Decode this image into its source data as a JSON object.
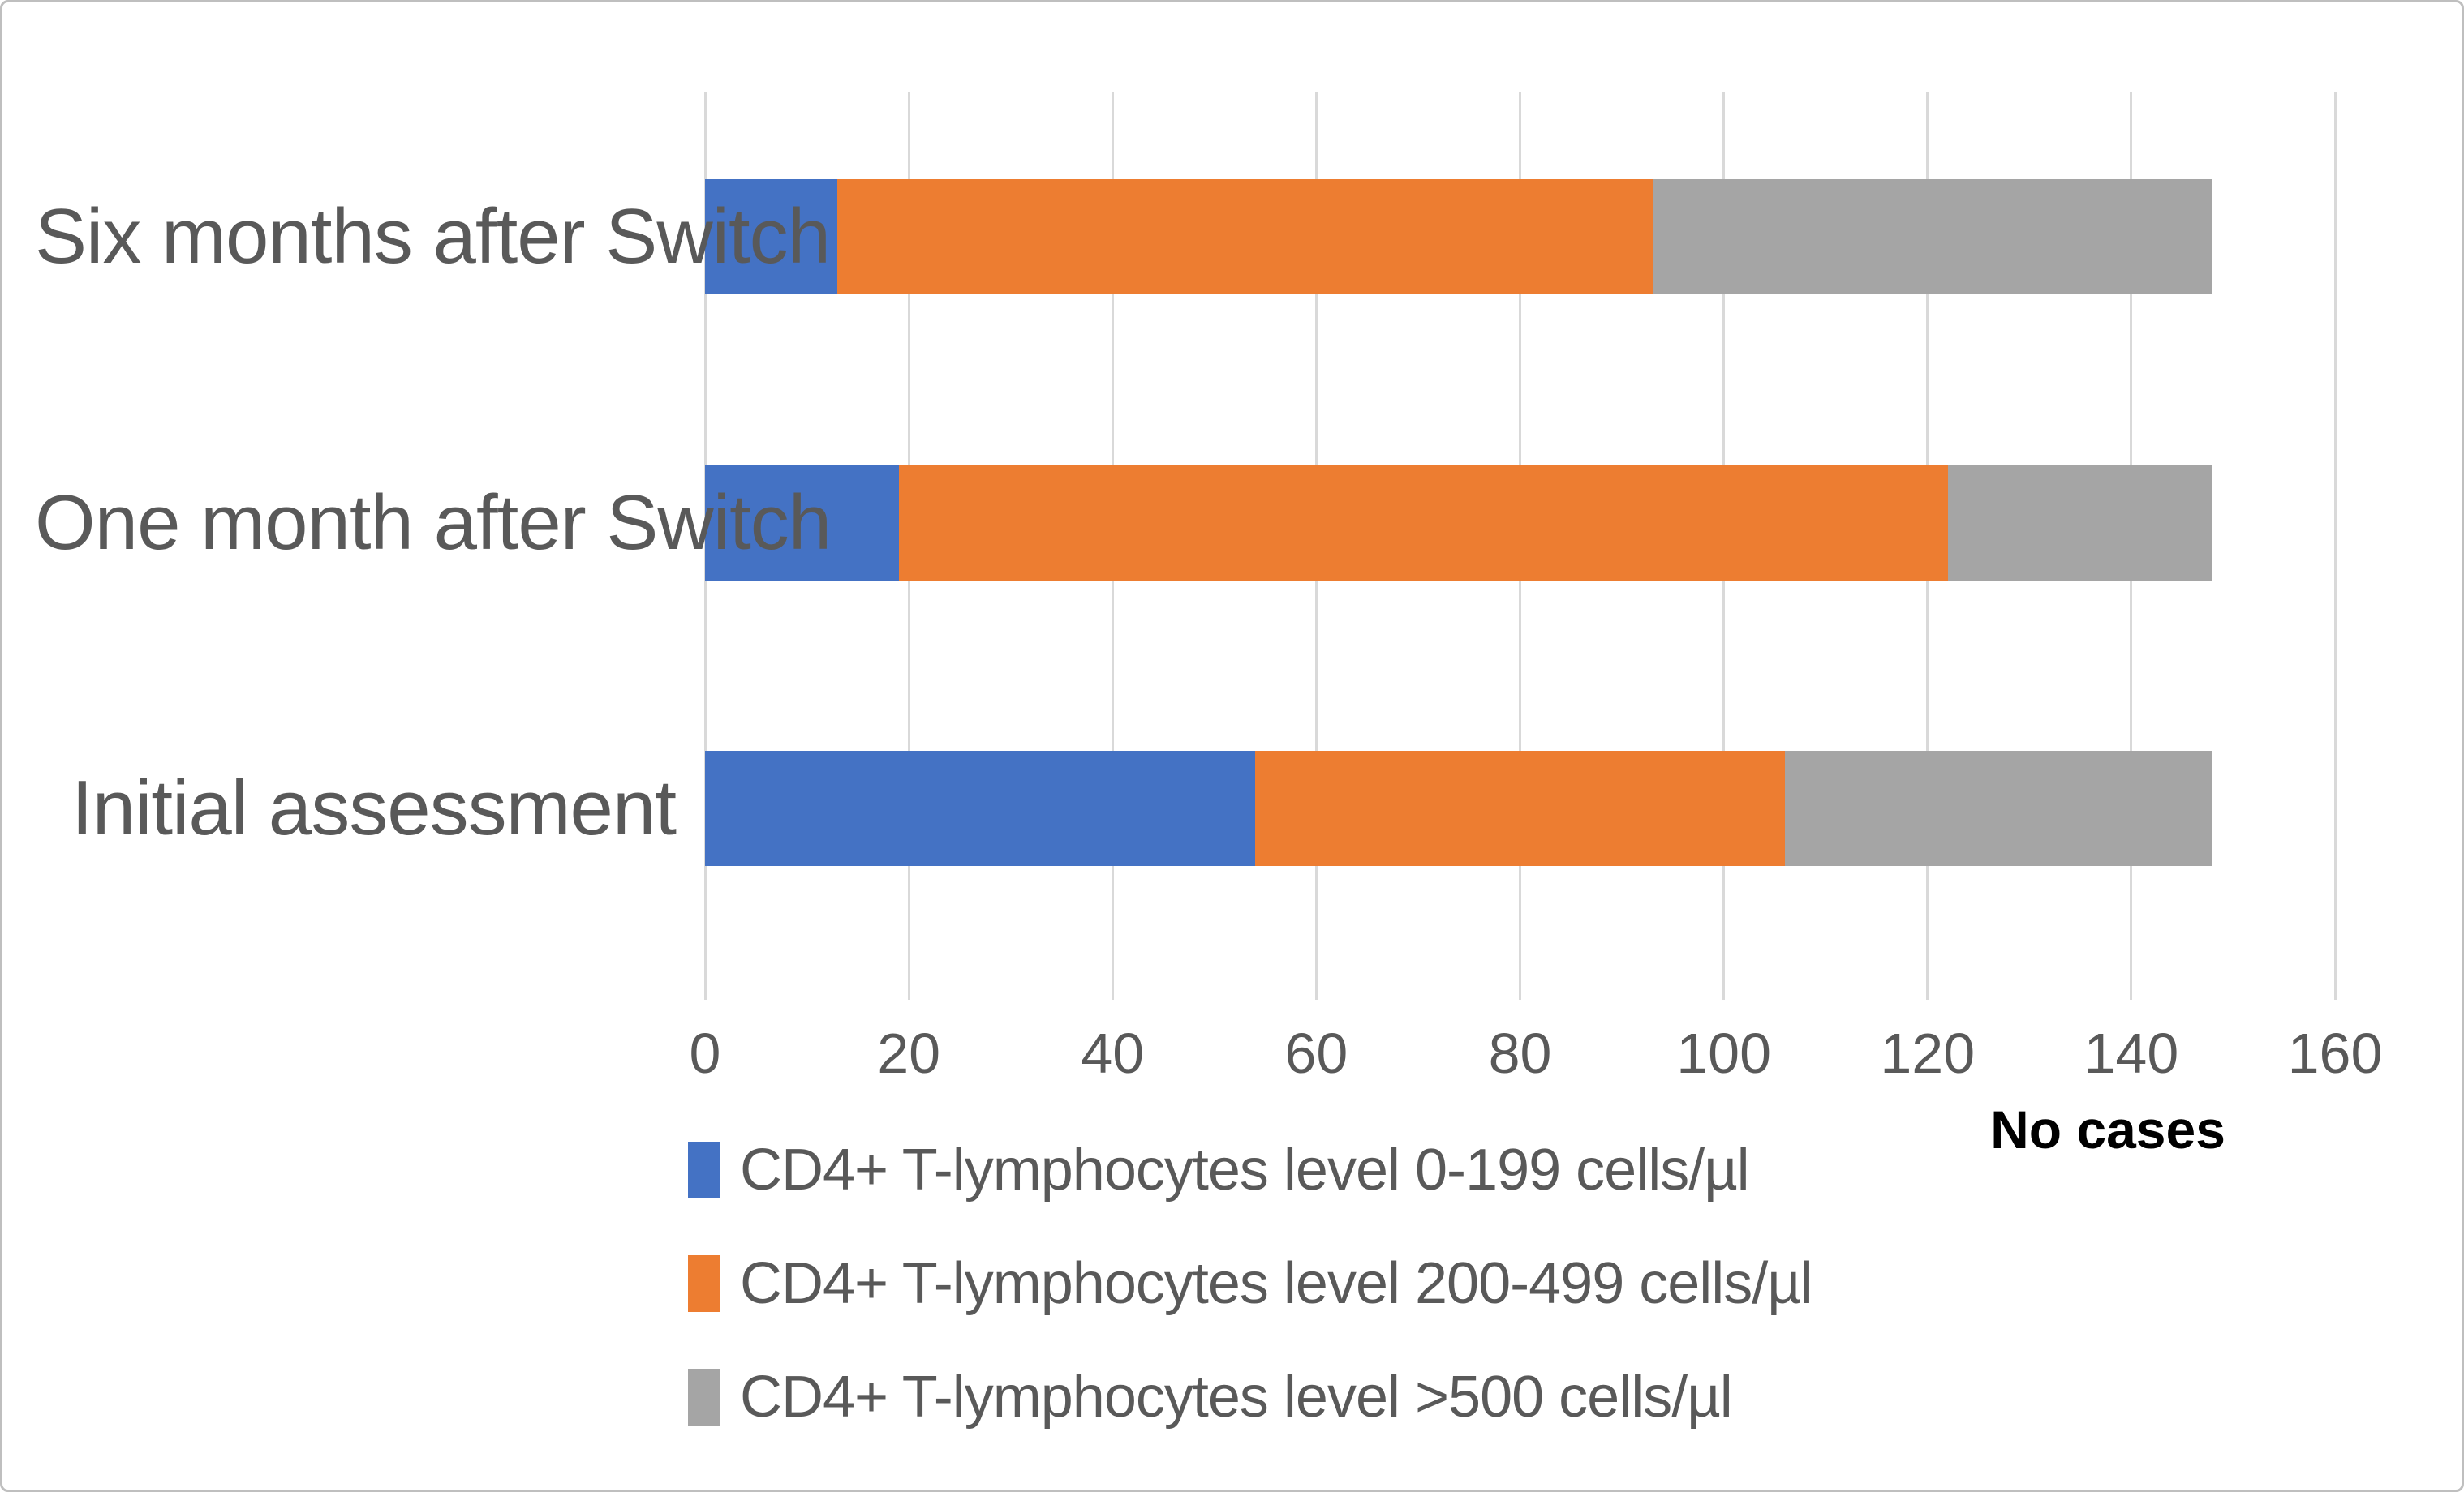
{
  "chart_data": {
    "type": "bar",
    "orientation": "horizontal",
    "stacked": true,
    "title": "",
    "xlabel": "No cases",
    "ylabel": "",
    "categories": [
      "Six months after Switch",
      "One month after Switch",
      "Initial assessment"
    ],
    "series": [
      {
        "name": "CD4+ T-lymphocytes level 0-199 cells/µl",
        "color": "#4472C4",
        "values": [
          13,
          19,
          54
        ]
      },
      {
        "name": "CD4+ T-lymphocytes level 200-499 cells/µl",
        "color": "#ED7D31",
        "values": [
          80,
          103,
          52
        ]
      },
      {
        "name": "CD4+ T-lymphocytes level >500 cells/µl",
        "color": "#A5A5A5",
        "values": [
          55,
          26,
          42
        ]
      }
    ],
    "category_totals": [
      148,
      148,
      148
    ],
    "x_ticks": [
      0,
      20,
      40,
      60,
      80,
      100,
      120,
      140,
      160
    ],
    "xlim": [
      0,
      160
    ],
    "grid": true,
    "legend_position": "bottom-left"
  },
  "colors": {
    "gridline": "#D9D9D9",
    "axis_text": "#595959",
    "category_text": "#595959",
    "legend_text": "#595959",
    "axis_title_text": "#000000",
    "frame_border": "#BFBFBF",
    "background": "#FFFFFF"
  }
}
